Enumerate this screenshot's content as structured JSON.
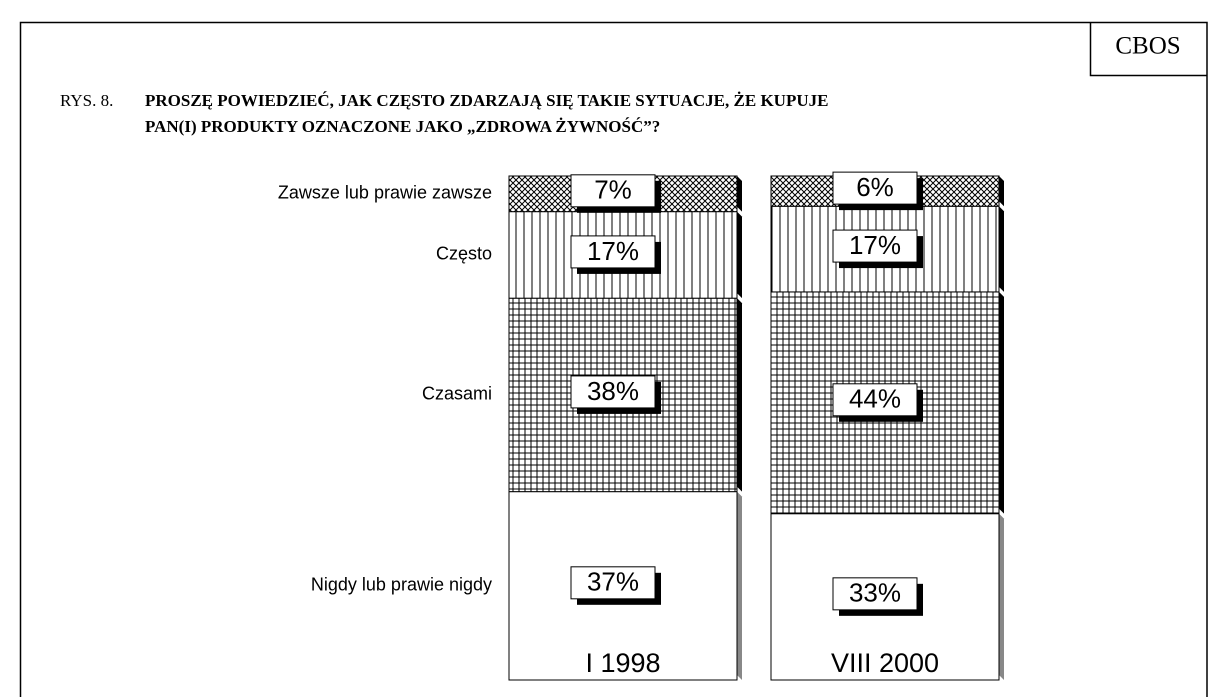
{
  "source": "CBOS",
  "chart_data": {
    "type": "stacked_bar",
    "figure_label": "RYS. 8.",
    "title_lines": [
      "PROSZĘ POWIEDZIEĆ, JAK CZĘSTO ZDARZAJĄ SIĘ TAKIE SYTUACJE, ŻE KUPUJE",
      "PAN(I) PRODUKTY OZNACZONE JAKO „ZDROWA ŻYWNOŚĆ”?"
    ],
    "categories": [
      "I 1998",
      "VIII 2000"
    ],
    "series": [
      {
        "name": "Nigdy lub prawie nigdy",
        "color": "#ffffff",
        "pattern": "none",
        "side_color": "#888888",
        "values": [
          37,
          33
        ],
        "value_labels": [
          "37%",
          "33%"
        ]
      },
      {
        "name": "Czasami",
        "color": "#ffffff",
        "pattern": "grid",
        "side_color": "#000000",
        "values": [
          38,
          44
        ],
        "value_labels": [
          "38%",
          "44%"
        ]
      },
      {
        "name": "Często",
        "color": "#ffffff",
        "pattern": "vertical",
        "side_color": "#000000",
        "values": [
          17,
          17
        ],
        "value_labels": [
          "17%",
          "17%"
        ]
      },
      {
        "name": "Zawsze lub prawie zawsze",
        "color": "#ffffff",
        "pattern": "crosshatch",
        "side_color": "#000000",
        "values": [
          7,
          6
        ],
        "value_labels": [
          "7%",
          "6%"
        ]
      }
    ]
  }
}
